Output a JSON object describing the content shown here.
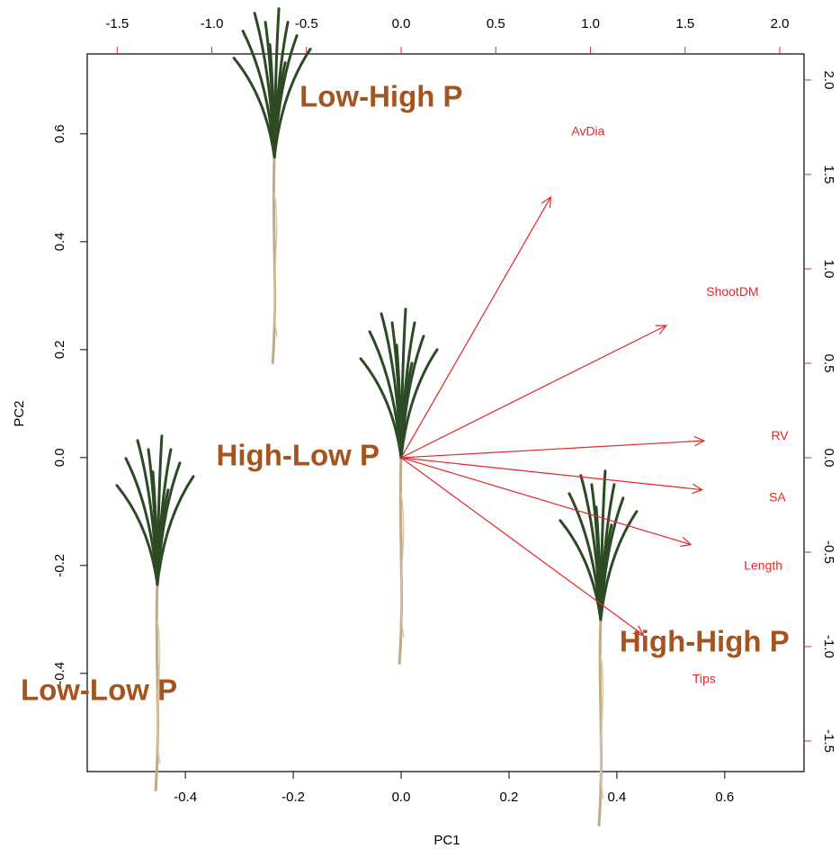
{
  "chart_data": {
    "type": "biplot",
    "xlabel": "PC1",
    "ylabel": "PC2",
    "xlim": [
      -0.582,
      0.747
    ],
    "ylim": [
      -0.582,
      0.748
    ],
    "xticks": [
      -0.4,
      -0.2,
      {
        "value": 0,
        "label": "0.0"
      },
      0.2,
      0.4,
      0.6
    ],
    "yticks": [
      -0.4,
      -0.2,
      {
        "value": 0,
        "label": "0.0"
      },
      0.2,
      0.4,
      0.6
    ],
    "x2lim": [
      -1.658,
      2.128
    ],
    "y2lim": [
      -1.662,
      2.138
    ],
    "x2ticks": [
      -1.5,
      {
        "value": -1,
        "label": "-1.0"
      },
      -0.5,
      {
        "value": 0,
        "label": "0.0"
      },
      0.5,
      {
        "value": 1,
        "label": "1.0"
      },
      1.5,
      {
        "value": 2,
        "label": "2.0"
      }
    ],
    "y2ticks": [
      -1.5,
      {
        "value": -1,
        "label": "-1.0"
      },
      -0.5,
      {
        "value": 0,
        "label": "0.0"
      },
      0.5,
      {
        "value": 1,
        "label": "1.0"
      },
      1.5,
      {
        "value": 2,
        "label": "2.0"
      }
    ],
    "samples": {
      "names": [
        "Low-High P",
        "High-Low P",
        "High-High P",
        "Low-Low P"
      ],
      "x": [
        -0.235,
        0.0,
        0.37,
        -0.452
      ],
      "y": [
        0.557,
        0.0,
        -0.3,
        -0.235
      ],
      "color": "#a5541f"
    },
    "loadings": {
      "names": [
        "AvDia",
        "ShootDM",
        "RV",
        "SA",
        "Length",
        "Tips"
      ],
      "x": [
        0.79,
        1.4,
        1.6,
        1.59,
        1.53,
        1.28
      ],
      "y": [
        1.38,
        0.7,
        0.09,
        -0.17,
        -0.46,
        -0.94
      ],
      "color": "#e3272a"
    }
  }
}
